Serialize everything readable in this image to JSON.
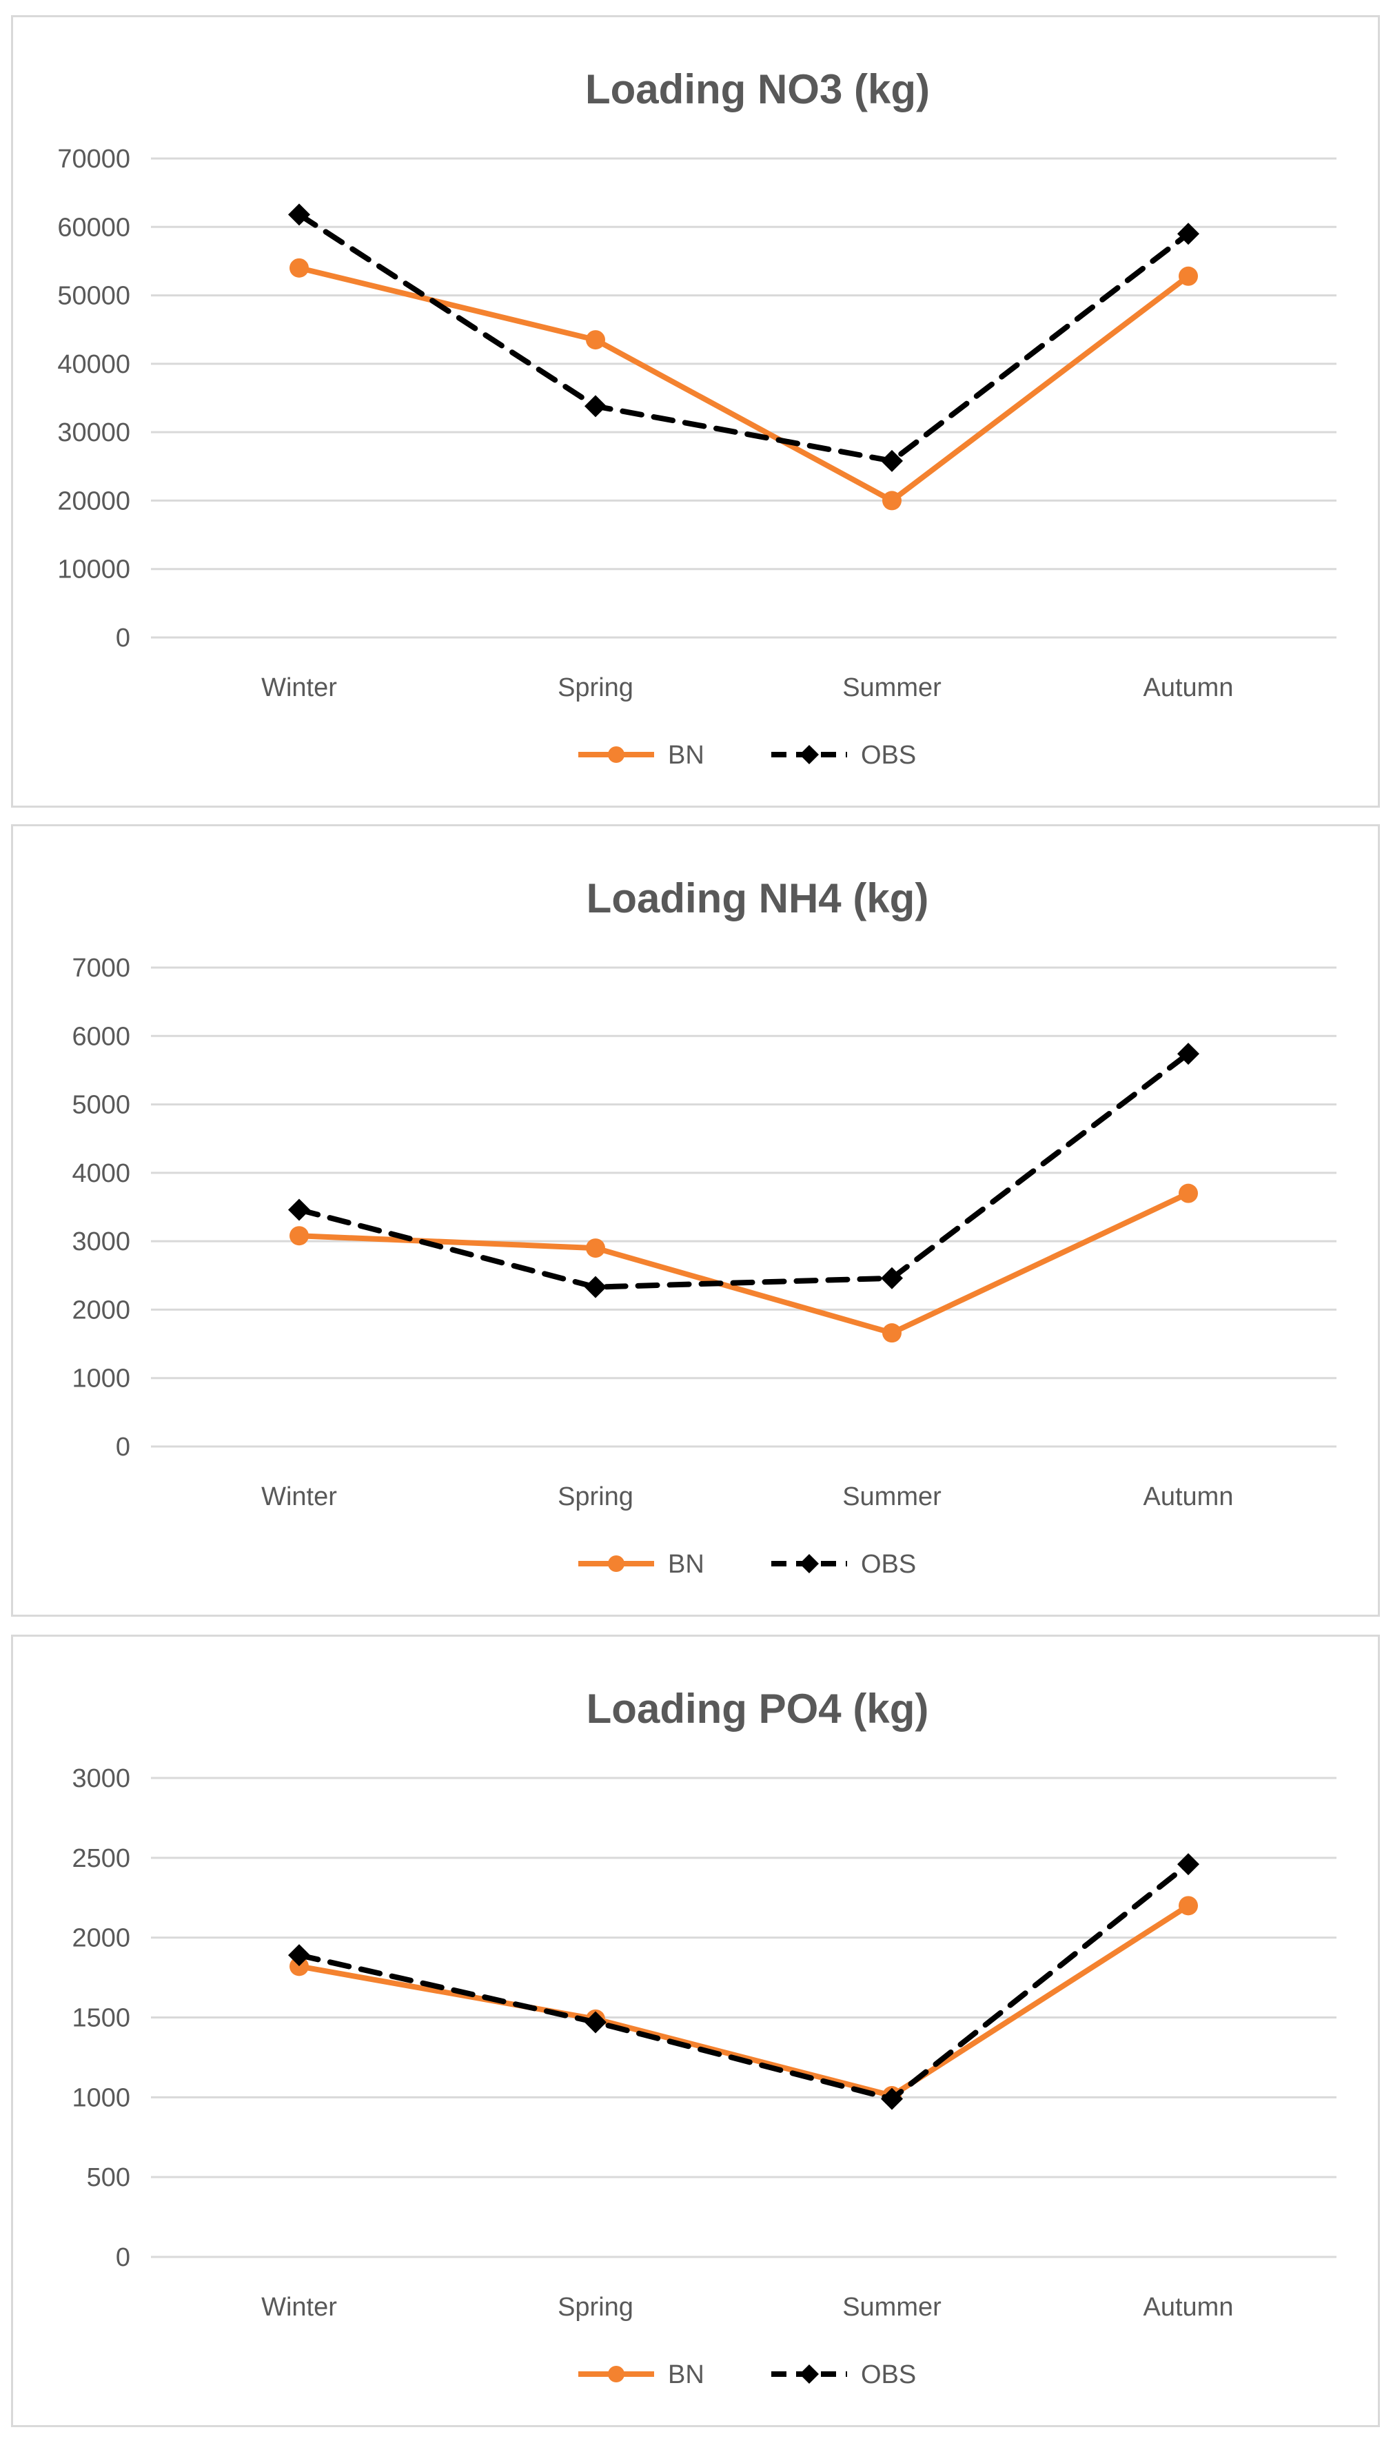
{
  "chart_data": [
    {
      "type": "line",
      "title": "Loading NO3 (kg)",
      "categories": [
        "Winter",
        "Spring",
        "Summer",
        "Autumn"
      ],
      "yticks": [
        "0",
        "10000",
        "20000",
        "30000",
        "40000",
        "50000",
        "60000",
        "70000"
      ],
      "ylim": [
        0,
        70000
      ],
      "series": [
        {
          "name": "BN",
          "values": [
            54000,
            43500,
            20000,
            52800
          ],
          "color": "#f4822f",
          "style": "solid"
        },
        {
          "name": "OBS",
          "values": [
            61800,
            33800,
            25800,
            59000
          ],
          "color": "#000000",
          "style": "dashed"
        }
      ],
      "legend": "bottom"
    },
    {
      "type": "line",
      "title": "Loading NH4 (kg)",
      "categories": [
        "Winter",
        "Spring",
        "Summer",
        "Autumn"
      ],
      "yticks": [
        "0",
        "1000",
        "2000",
        "3000",
        "4000",
        "5000",
        "6000",
        "7000"
      ],
      "ylim": [
        0,
        7000
      ],
      "series": [
        {
          "name": "BN",
          "values": [
            3080,
            2900,
            1660,
            3700
          ],
          "color": "#f4822f",
          "style": "solid"
        },
        {
          "name": "OBS",
          "values": [
            3460,
            2330,
            2460,
            5740
          ],
          "color": "#000000",
          "style": "dashed"
        }
      ],
      "legend": "bottom"
    },
    {
      "type": "line",
      "title": "Loading PO4 (kg)",
      "categories": [
        "Winter",
        "Spring",
        "Summer",
        "Autumn"
      ],
      "yticks": [
        "0",
        "500",
        "1000",
        "1500",
        "2000",
        "2500",
        "3000"
      ],
      "ylim": [
        0,
        3000
      ],
      "series": [
        {
          "name": "BN",
          "values": [
            1820,
            1490,
            1010,
            2200
          ],
          "color": "#f4822f",
          "style": "solid"
        },
        {
          "name": "OBS",
          "values": [
            1890,
            1470,
            990,
            2460
          ],
          "color": "#000000",
          "style": "dashed"
        }
      ],
      "legend": "bottom"
    }
  ]
}
